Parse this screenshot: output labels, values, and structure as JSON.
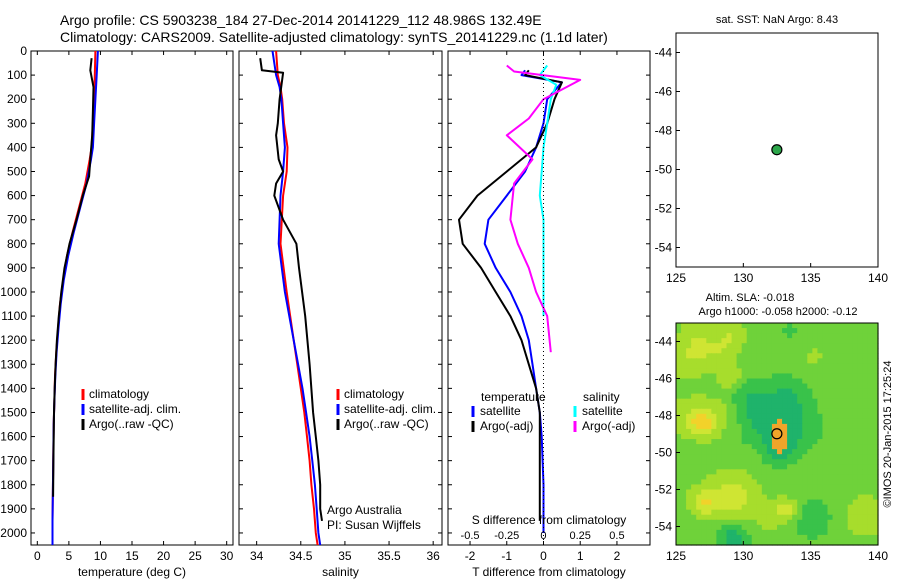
{
  "header": {
    "title_line1": "Argo profile: CS 5903238_184 27-Dec-2014 20141229_112 48.986S 132.49E",
    "title_line2": "Climatology: CARS2009. Satellite-adjusted climatology: synTS_20141229.nc (1.1d later)"
  },
  "colors": {
    "climatology": "#ff0000",
    "satellite": "#0000ff",
    "argo": "#000000",
    "sal_satellite": "#00ffff",
    "sal_argo": "#ff00ff",
    "marker": "#2ca64a"
  },
  "chart_data": [
    {
      "type": "line",
      "panel": "temperature",
      "xlabel": "temperature (deg C)",
      "ylabel": "",
      "xlim": [
        -1,
        31
      ],
      "ylim": [
        2050,
        0
      ],
      "xticks": [
        0,
        5,
        10,
        15,
        20,
        25,
        30
      ],
      "yticks": [
        0,
        100,
        200,
        300,
        400,
        500,
        600,
        700,
        800,
        900,
        1000,
        1100,
        1200,
        1300,
        1400,
        1500,
        1600,
        1700,
        1800,
        1900,
        2000
      ],
      "legend": {
        "placement": "bottom-center",
        "entries": [
          "climatology",
          "satellite-adj. clim.",
          "Argo(..raw -QC)"
        ]
      },
      "series": [
        {
          "name": "climatology",
          "color": "#ff0000",
          "x": [
            9.2,
            9.1,
            9.0,
            8.8,
            8.6,
            8.3,
            7.6,
            6.6,
            5.6,
            4.7,
            4.1,
            3.6,
            3.3,
            3.0,
            2.8,
            2.7,
            2.6,
            2.55,
            2.5,
            2.45,
            2.4,
            2.4
          ],
          "y": [
            0,
            100,
            200,
            300,
            400,
            450,
            550,
            650,
            750,
            850,
            950,
            1050,
            1150,
            1250,
            1350,
            1450,
            1550,
            1650,
            1750,
            1850,
            1950,
            2050
          ]
        },
        {
          "name": "satellite-adj. clim.",
          "color": "#0000ff",
          "x": [
            9.6,
            9.4,
            9.2,
            9.0,
            8.8,
            8.5,
            7.8,
            6.8,
            5.8,
            4.9,
            4.2,
            3.7,
            3.35,
            3.05,
            2.85,
            2.7,
            2.6,
            2.55,
            2.5,
            2.45,
            2.4,
            2.4
          ],
          "y": [
            0,
            100,
            200,
            300,
            400,
            450,
            550,
            650,
            750,
            850,
            950,
            1050,
            1150,
            1250,
            1350,
            1450,
            1550,
            1650,
            1750,
            1850,
            1950,
            2050
          ]
        },
        {
          "name": "Argo(..raw -QC)",
          "color": "#000000",
          "x": [
            8.6,
            8.4,
            8.9,
            8.8,
            8.7,
            8.4,
            8.2,
            7.2,
            6.2,
            5.1,
            4.3,
            3.8,
            3.4,
            3.1,
            2.9,
            2.75,
            2.65,
            2.6,
            2.55,
            2.5
          ],
          "y": [
            30,
            80,
            150,
            250,
            350,
            450,
            520,
            600,
            700,
            800,
            900,
            1000,
            1100,
            1200,
            1300,
            1400,
            1500,
            1600,
            1700,
            1850
          ]
        }
      ]
    },
    {
      "type": "line",
      "panel": "salinity",
      "xlabel": "salinity",
      "xlim": [
        33.8,
        36.1
      ],
      "ylim": [
        2050,
        0
      ],
      "xticks": [
        34,
        34.5,
        35,
        35.5,
        36
      ],
      "legend": {
        "placement": "bottom-right",
        "entries": [
          "climatology",
          "satellite-adj. clim.",
          "Argo(..raw -QC)"
        ]
      },
      "annotations": [
        "Argo Australia",
        "PI: Susan Wijffels"
      ],
      "series": [
        {
          "name": "climatology",
          "color": "#ff0000",
          "x": [
            34.22,
            34.24,
            34.27,
            34.29,
            34.31,
            34.35,
            34.34,
            34.3,
            34.27,
            34.34,
            34.38,
            34.42,
            34.46,
            34.5,
            34.54,
            34.57,
            34.6,
            34.62,
            34.65,
            34.67,
            34.69
          ],
          "y": [
            0,
            100,
            150,
            200,
            300,
            400,
            500,
            600,
            800,
            1000,
            1100,
            1200,
            1300,
            1400,
            1500,
            1600,
            1700,
            1800,
            1900,
            2000,
            2050
          ]
        },
        {
          "name": "satellite-adj. clim.",
          "color": "#0000ff",
          "x": [
            34.18,
            34.22,
            34.26,
            34.28,
            34.3,
            34.32,
            34.3,
            34.27,
            34.25,
            34.32,
            34.37,
            34.42,
            34.47,
            34.52,
            34.56,
            34.6,
            34.63,
            34.66,
            34.68,
            34.7,
            34.72
          ],
          "y": [
            0,
            100,
            150,
            200,
            300,
            400,
            500,
            600,
            800,
            1000,
            1100,
            1200,
            1300,
            1400,
            1500,
            1600,
            1700,
            1800,
            1900,
            2000,
            2050
          ]
        },
        {
          "name": "Argo(..raw -QC)",
          "color": "#000000",
          "x": [
            34.04,
            34.06,
            34.3,
            34.26,
            34.24,
            34.22,
            34.25,
            34.3,
            34.22,
            34.2,
            34.3,
            34.45,
            34.48,
            34.55,
            34.6,
            34.64,
            34.67,
            34.7,
            34.72,
            34.72,
            34.74
          ],
          "y": [
            30,
            80,
            90,
            200,
            300,
            350,
            450,
            500,
            550,
            600,
            700,
            800,
            900,
            1100,
            1300,
            1500,
            1600,
            1700,
            1800,
            1900,
            1950
          ]
        }
      ]
    },
    {
      "type": "line",
      "panel": "difference",
      "xlabel": "T difference from climatology",
      "x2label": "S difference from climatology",
      "xlim": [
        -2.6,
        2.9
      ],
      "ylim": [
        2050,
        0
      ],
      "xticks": [
        -2,
        -1,
        0,
        1,
        2
      ],
      "x2ticks": [
        "-0.5",
        "-0.25",
        "0",
        "0.25",
        "0.5"
      ],
      "legend": {
        "placement": "bottom",
        "temperature_title": "temperature",
        "salinity_title": "salinity",
        "temperature_entries": [
          "satellite",
          "Argo(-adj)"
        ],
        "salinity_entries": [
          "satellite",
          "Argo(-adj)"
        ]
      },
      "series": [
        {
          "name": "temperature satellite",
          "color": "#0000ff",
          "x": [
            -0.5,
            -0.6,
            0.5,
            0.1,
            0.0,
            -0.2,
            -0.5,
            -1.0,
            -1.5,
            -1.6,
            -1.3,
            -0.9,
            -0.6,
            -0.4,
            -0.3,
            -0.2,
            -0.1,
            -0.05,
            0.0,
            0.0
          ],
          "y": [
            80,
            100,
            130,
            200,
            300,
            400,
            500,
            600,
            700,
            800,
            900,
            1000,
            1100,
            1200,
            1300,
            1400,
            1500,
            1600,
            1800,
            2000
          ]
        },
        {
          "name": "temperature Argo(-adj)",
          "color": "#000000",
          "x": [
            -0.4,
            -0.5,
            0.5,
            0.3,
            0.1,
            -0.2,
            -1.0,
            -1.8,
            -2.3,
            -2.2,
            -1.7,
            -1.3,
            -0.9,
            -0.6,
            -0.4,
            -0.2,
            -0.1,
            -0.1,
            -0.1,
            -0.1
          ],
          "y": [
            80,
            100,
            130,
            200,
            300,
            400,
            500,
            600,
            700,
            800,
            900,
            1000,
            1100,
            1200,
            1300,
            1400,
            1500,
            1600,
            1800,
            1950
          ]
        },
        {
          "name": "salinity satellite",
          "color": "#00ffff",
          "x": [
            0.1,
            -0.1,
            0.35,
            0.2,
            0.1,
            0.0,
            -0.05,
            -0.1,
            0.0,
            0.0,
            0.0,
            0.0,
            0.0
          ],
          "y": [
            60,
            100,
            140,
            200,
            300,
            400,
            500,
            600,
            700,
            800,
            900,
            1000,
            1100
          ]
        },
        {
          "name": "salinity Argo(-adj)",
          "color": "#ff00ff",
          "x": [
            -1.0,
            -0.8,
            1.0,
            0.0,
            -0.4,
            -1.0,
            -0.3,
            -0.8,
            -0.9,
            -0.7,
            -0.4,
            -0.2,
            0.1,
            0.2
          ],
          "y": [
            60,
            85,
            120,
            200,
            280,
            350,
            450,
            550,
            700,
            800,
            900,
            1000,
            1100,
            1250
          ]
        }
      ]
    },
    {
      "type": "scatter",
      "panel": "sst-location",
      "title": "sat. SST: NaN Argo: 8.43",
      "xlim": [
        125,
        140
      ],
      "ylim": [
        -55,
        -43
      ],
      "xticks": [
        125,
        130,
        135,
        140
      ],
      "yticks": [
        -44,
        -46,
        -48,
        -50,
        -52,
        -54
      ],
      "points": [
        {
          "x": 132.49,
          "y": -48.986
        }
      ]
    },
    {
      "type": "heatmap",
      "panel": "altimetry",
      "title_line1": "Altim. SLA: -0.018",
      "title_line2": "Argo h1000: -0.058 h2000: -0.12",
      "xlim": [
        125,
        140
      ],
      "ylim": [
        -55,
        -43
      ],
      "xticks": [
        125,
        130,
        135,
        140
      ],
      "yticks": [
        -44,
        -46,
        -48,
        -50,
        -52,
        -54
      ],
      "points": [
        {
          "x": 132.49,
          "y": -48.986
        }
      ],
      "side_label": "©IMOS 20-Jan-2015 17:25:24"
    }
  ]
}
